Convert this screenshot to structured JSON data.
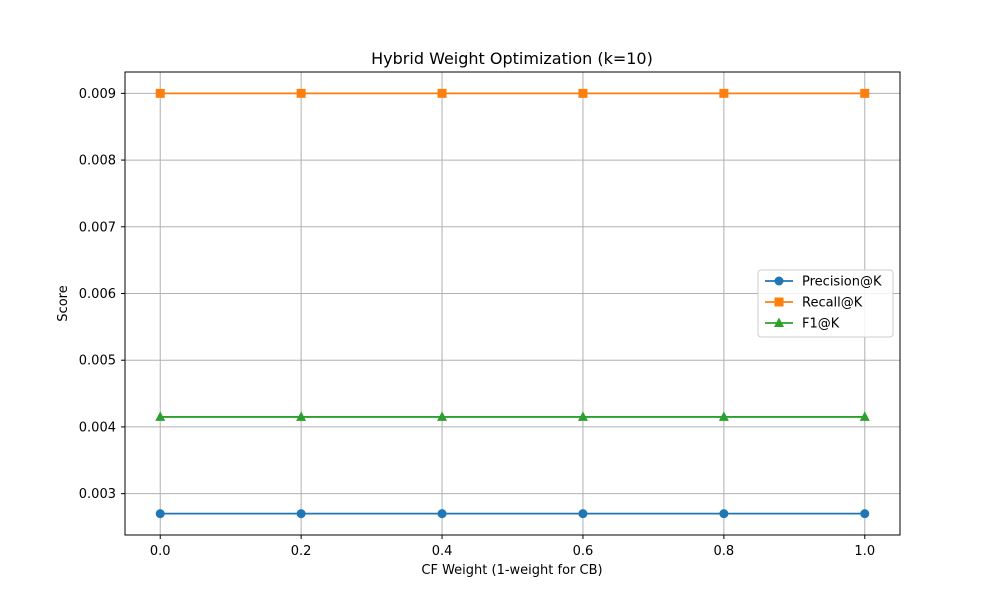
{
  "chart_data": {
    "type": "line",
    "title": "Hybrid Weight Optimization (k=10)",
    "xlabel": "CF Weight (1-weight for CB)",
    "ylabel": "Score",
    "x": [
      0.0,
      0.2,
      0.4,
      0.6,
      0.8,
      1.0
    ],
    "xlim": [
      -0.05,
      1.05
    ],
    "ylim": [
      0.00238,
      0.00932
    ],
    "x_ticks": [
      0.0,
      0.2,
      0.4,
      0.6,
      0.8,
      1.0
    ],
    "x_tick_labels": [
      "0.0",
      "0.2",
      "0.4",
      "0.6",
      "0.8",
      "1.0"
    ],
    "y_ticks": [
      0.003,
      0.004,
      0.005,
      0.006,
      0.007,
      0.008,
      0.009
    ],
    "y_tick_labels": [
      "0.003",
      "0.004",
      "0.005",
      "0.006",
      "0.007",
      "0.008",
      "0.009"
    ],
    "grid": true,
    "legend_position": "center-right",
    "series": [
      {
        "name": "Precision@K",
        "color": "#1f77b4",
        "marker": "circle",
        "values": [
          0.0027,
          0.0027,
          0.0027,
          0.0027,
          0.0027,
          0.0027
        ]
      },
      {
        "name": "Recall@K",
        "color": "#ff7f0e",
        "marker": "square",
        "values": [
          0.009,
          0.009,
          0.009,
          0.009,
          0.009,
          0.009
        ]
      },
      {
        "name": "F1@K",
        "color": "#2ca02c",
        "marker": "triangle",
        "values": [
          0.00415,
          0.00415,
          0.00415,
          0.00415,
          0.00415,
          0.00415
        ]
      }
    ]
  }
}
